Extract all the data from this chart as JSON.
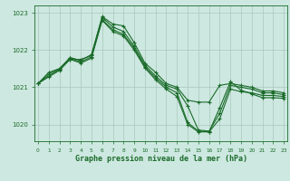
{
  "title": "Graphe pression niveau de la mer (hPa)",
  "background_color": "#cde8e0",
  "line_color": "#1a6b2a",
  "grid_color": "#a8c8bc",
  "ylim": [
    1019.55,
    1023.2
  ],
  "xlim": [
    -0.3,
    23.3
  ],
  "yticks": [
    1020,
    1021,
    1022,
    1023
  ],
  "xticks": [
    0,
    1,
    2,
    3,
    4,
    5,
    6,
    7,
    8,
    9,
    10,
    11,
    12,
    13,
    14,
    15,
    16,
    17,
    18,
    19,
    20,
    21,
    22,
    23
  ],
  "series1": {
    "x": [
      0,
      1,
      2,
      3,
      4,
      5,
      6,
      7,
      8,
      9,
      10,
      11,
      12,
      13,
      14,
      15,
      16,
      17,
      18,
      19,
      20,
      21,
      22,
      23
    ],
    "y": [
      1021.1,
      1021.4,
      1021.5,
      1021.75,
      1021.75,
      1021.85,
      1022.9,
      1022.7,
      1022.65,
      1022.2,
      1021.65,
      1021.4,
      1021.1,
      1021.0,
      1020.65,
      1020.6,
      1020.6,
      1021.05,
      1021.1,
      1021.05,
      1021.0,
      1020.9,
      1020.9,
      1020.85
    ]
  },
  "series2": {
    "x": [
      0,
      1,
      2,
      3,
      4,
      5,
      6,
      7,
      8,
      9,
      10,
      11,
      12,
      13,
      14,
      15,
      16,
      17,
      18,
      19,
      20,
      21,
      22,
      23
    ],
    "y": [
      1021.1,
      1021.35,
      1021.5,
      1021.8,
      1021.72,
      1021.88,
      1022.88,
      1022.62,
      1022.5,
      1022.1,
      1021.6,
      1021.3,
      1021.05,
      1020.95,
      1020.5,
      1019.85,
      1019.82,
      1020.3,
      1021.05,
      1021.0,
      1020.95,
      1020.85,
      1020.85,
      1020.8
    ]
  },
  "series3": {
    "x": [
      0,
      1,
      2,
      3,
      4,
      5,
      6,
      7,
      8,
      9,
      10,
      11,
      12,
      13,
      14,
      15,
      16,
      17,
      18,
      19,
      20,
      21,
      22,
      23
    ],
    "y": [
      1021.1,
      1021.3,
      1021.48,
      1021.78,
      1021.68,
      1021.82,
      1022.82,
      1022.55,
      1022.42,
      1022.05,
      1021.55,
      1021.25,
      1021.0,
      1020.85,
      1020.05,
      1019.82,
      1019.8,
      1020.15,
      1020.95,
      1020.88,
      1020.85,
      1020.78,
      1020.78,
      1020.75
    ]
  },
  "series4": {
    "x": [
      0,
      1,
      2,
      3,
      4,
      5,
      6,
      7,
      8,
      9,
      10,
      11,
      12,
      13,
      14,
      15,
      16,
      17,
      18,
      19,
      20,
      21,
      22,
      23
    ],
    "y": [
      1021.1,
      1021.28,
      1021.45,
      1021.75,
      1021.65,
      1021.78,
      1022.8,
      1022.5,
      1022.38,
      1022.0,
      1021.52,
      1021.2,
      1020.95,
      1020.75,
      1020.0,
      1019.8,
      1019.8,
      1020.45,
      1021.15,
      1020.92,
      1020.82,
      1020.72,
      1020.72,
      1020.7
    ]
  }
}
